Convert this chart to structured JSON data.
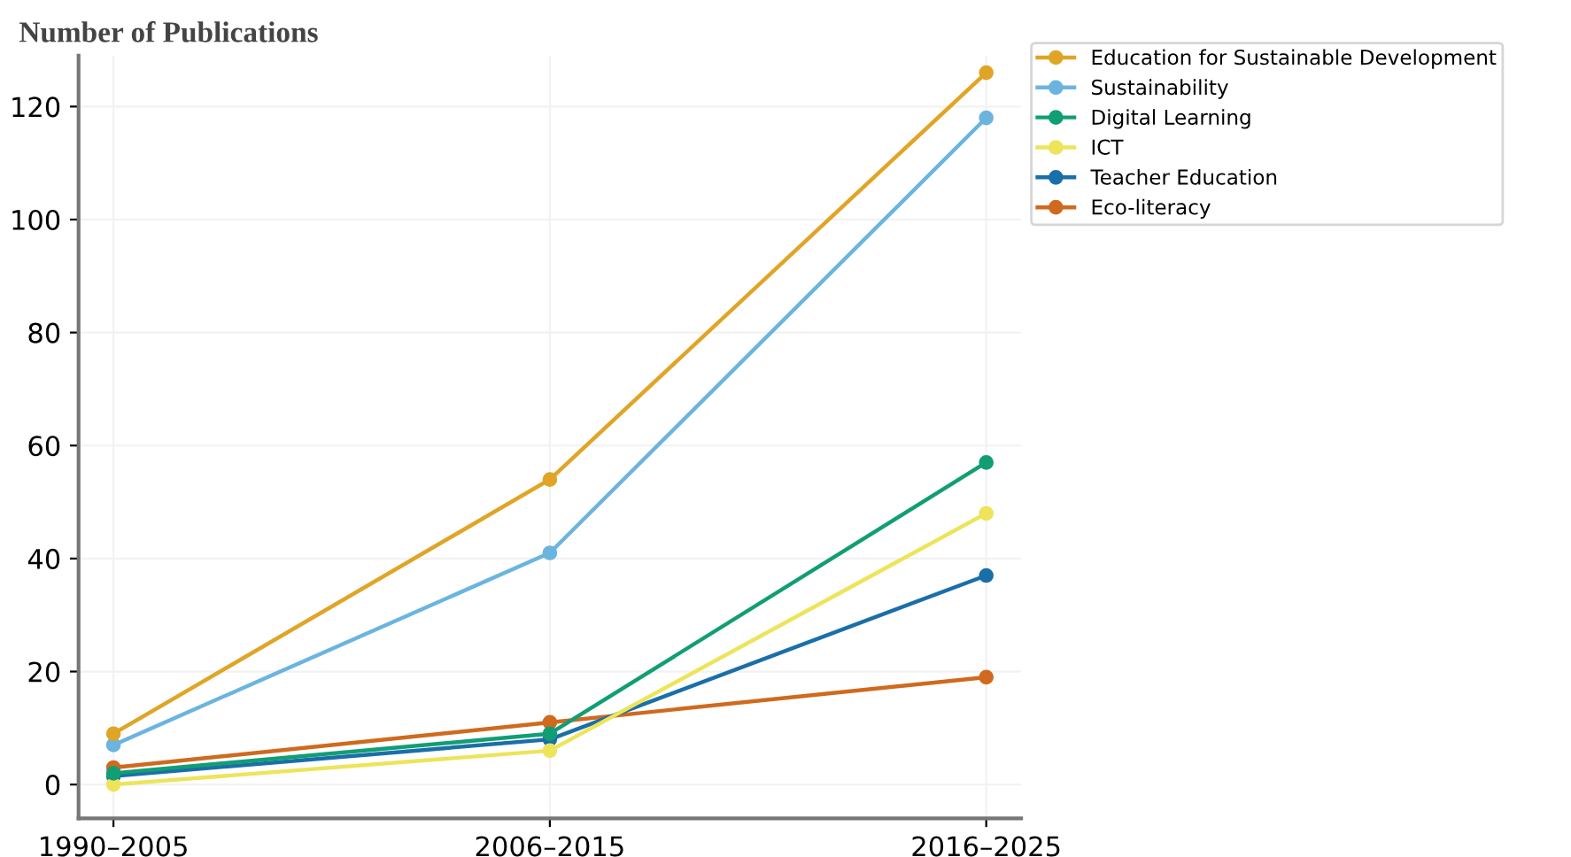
{
  "chart_data": {
    "type": "line",
    "title": "Number of Publications",
    "categories": [
      "1990–2005",
      "2006–2015",
      "2016–2025"
    ],
    "series": [
      {
        "name": "Education for Sustainable Development",
        "color": "#e0a526",
        "values": [
          9,
          54,
          126
        ]
      },
      {
        "name": "Sustainability",
        "color": "#6cb4e0",
        "values": [
          7,
          41,
          118
        ]
      },
      {
        "name": "Digital Learning",
        "color": "#119e74",
        "values": [
          2,
          9,
          57
        ]
      },
      {
        "name": "ICT",
        "color": "#ede45a",
        "values": [
          0,
          6,
          48
        ]
      },
      {
        "name": "Teacher Education",
        "color": "#1a6fa8",
        "values": [
          1.5,
          8,
          37
        ]
      },
      {
        "name": "Eco-literacy",
        "color": "#cf6a1e",
        "values": [
          3,
          11,
          19
        ]
      }
    ],
    "ylim": [
      -6,
      129
    ],
    "yticks": [
      0,
      20,
      40,
      60,
      80,
      100,
      120
    ],
    "grid": true,
    "legend": "top right",
    "marker": "circle",
    "line_style": "solid"
  }
}
